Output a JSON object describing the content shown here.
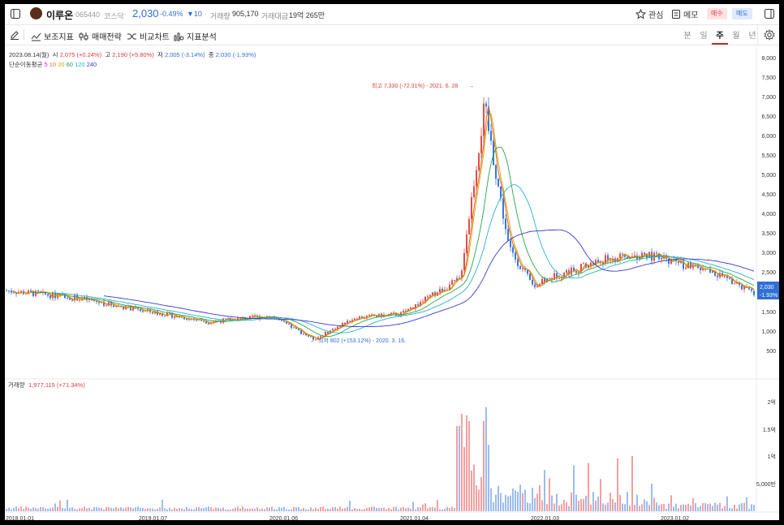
{
  "header": {
    "stock_name": "이루온",
    "stock_code": "065440",
    "market": "코스닥",
    "price": "2,030",
    "change_pct": "-0.49%",
    "change_abs": "▼10",
    "volume_label": "거래량",
    "volume_value": "905,170",
    "amount_label": "거래대금",
    "amount_value": "19억 265만",
    "watch_label": "관심",
    "memo_label": "메모",
    "buy_label": "매수",
    "sell_label": "매도"
  },
  "toolbar": {
    "indicator_label": "보조지표",
    "strategy_label": "매매전략",
    "compare_label": "비교차트",
    "analysis_label": "지표분석",
    "periods": [
      "분",
      "일",
      "주",
      "월",
      "년"
    ],
    "active_period": "주"
  },
  "info": {
    "date": "2023.08.14(월)",
    "open_label": "시",
    "open_value": "2,075 (+0.24%)",
    "high_label": "고",
    "high_value": "2,190 (+5.80%)",
    "low_label": "저",
    "low_value": "2,005 (-3.14%)",
    "close_label": "종",
    "close_value": "2,030 (-1.93%)",
    "ma_label": "단순이동평균",
    "ma_periods": [
      "5",
      "10",
      "20",
      "60",
      "120",
      "240"
    ],
    "ma_colors": [
      "#c02ac0",
      "#e07b1f",
      "#d6a000",
      "#2aa44b",
      "#2bb0c8",
      "#3a3ad0"
    ]
  },
  "annotations": {
    "high": "최고 7,330 (-72.31%) - 2021. 6. 28",
    "low": "최저 802 (+153.12%) - 2020. 3. 16."
  },
  "volume_panel": {
    "label": "거래량",
    "value": "1,977,115 (+71.34%)"
  },
  "price_axis": [
    "8,000",
    "7,500",
    "7,000",
    "6,500",
    "6,000",
    "5,500",
    "5,000",
    "4,500",
    "4,000",
    "3,500",
    "3,000",
    "2,500",
    "1,500",
    "1,000",
    "500"
  ],
  "price_tag": {
    "price": "2,030",
    "pct": "-1.93%"
  },
  "volume_axis": [
    "2억",
    "1.5억",
    "1억",
    "5,000만"
  ],
  "time_axis": [
    "2018.01.01",
    "2019.01.07",
    "2020.01.06",
    "2021.01.04",
    "2022.01.03",
    "2023.01.02"
  ],
  "chart_data": {
    "type": "candlestick",
    "x": [
      "2018.01",
      "2018.07",
      "2019.01",
      "2019.07",
      "2020.01",
      "2020.03",
      "2020.07",
      "2021.01",
      "2021.04",
      "2021.06",
      "2021.08",
      "2021.11",
      "2022.01",
      "2022.06",
      "2022.10",
      "2023.01",
      "2023.05",
      "2023.08"
    ],
    "close": [
      2100,
      1900,
      1600,
      1300,
      1450,
      850,
      1400,
      1500,
      2400,
      6800,
      3200,
      2200,
      2500,
      2900,
      3000,
      2900,
      2500,
      2030
    ],
    "y_range": [
      0,
      8000
    ]
  }
}
